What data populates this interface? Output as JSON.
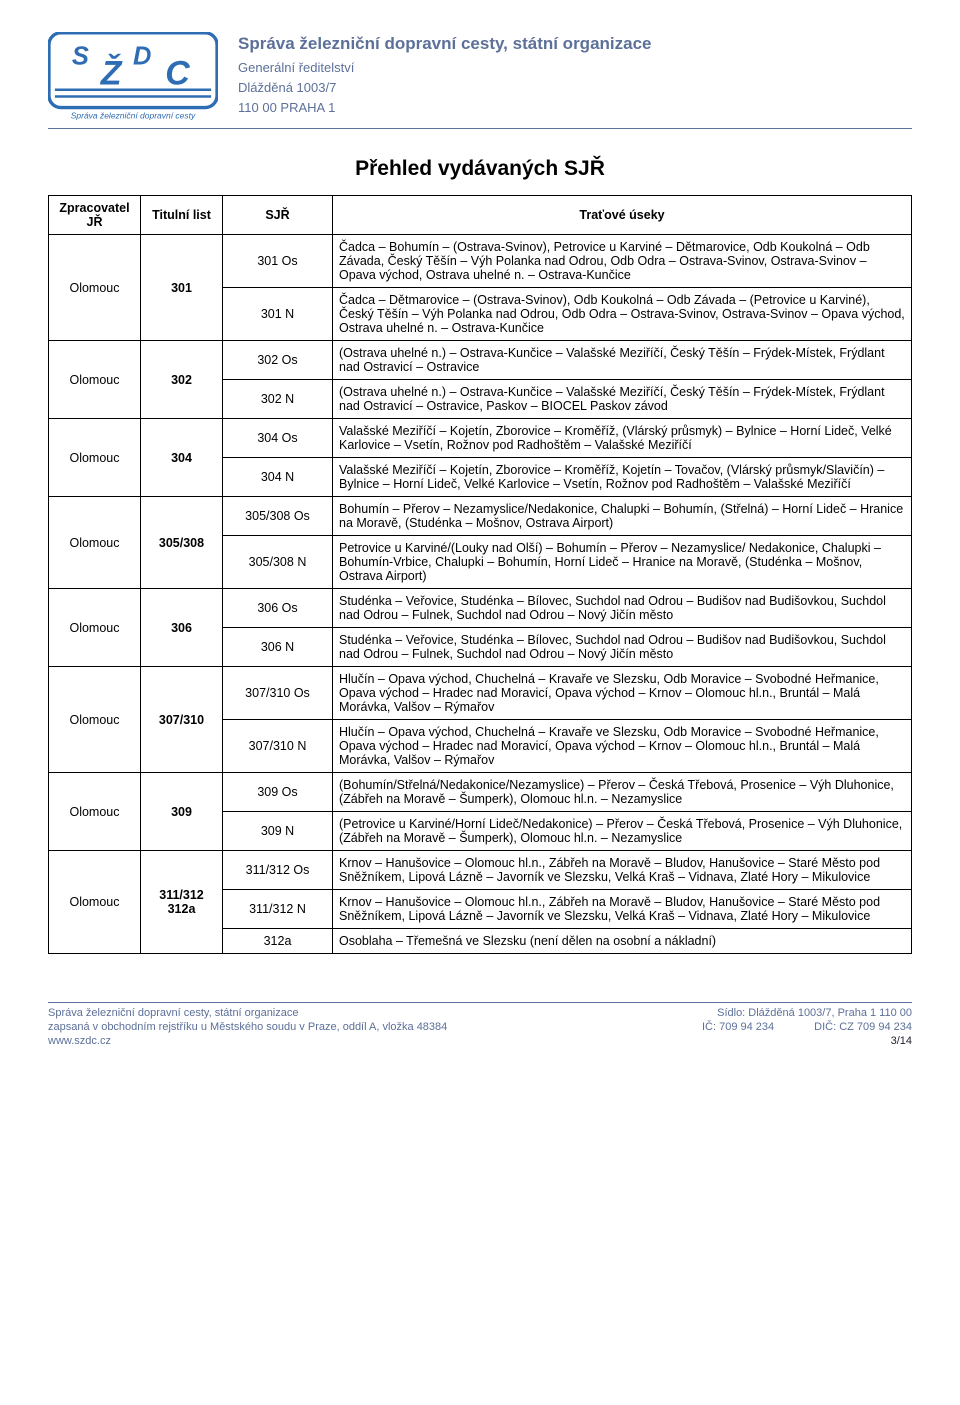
{
  "colors": {
    "accent": "#5d7099",
    "text": "#000000",
    "background": "#ffffff"
  },
  "header": {
    "org_name": "Správa železniční dopravní cesty, státní organizace",
    "line1": "Generální ředitelství",
    "line2": "Dlážděná 1003/7",
    "line3": "110 00  PRAHA 1",
    "logo_tag": "Správa železniční dopravní cesty"
  },
  "title": "Přehled vydávaných SJŘ",
  "columns": {
    "zprac": "Zpracovatel JŘ",
    "titulni": "Titulní list",
    "sjr": "SJŘ",
    "trat": "Traťové úseky"
  },
  "rows": [
    {
      "zprac": "Olomouc",
      "titulni": "301",
      "sub": [
        {
          "sjr": "301 Os",
          "trat": "Čadca – Bohumín – (Ostrava-Svinov), Petrovice u Karviné – Dětmarovice, Odb Koukolná – Odb Závada, Český Těšín – Výh Polanka nad Odrou, Odb Odra – Ostrava-Svinov, Ostrava-Svinov – Opava východ, Ostrava uhelné n. – Ostrava-Kunčice"
        },
        {
          "sjr": "301 N",
          "trat": "Čadca – Dětmarovice – (Ostrava-Svinov), Odb Koukolná – Odb Závada – (Petrovice u Karviné), Český Těšín – Výh Polanka nad Odrou, Odb Odra – Ostrava-Svinov, Ostrava-Svinov – Opava východ, Ostrava uhelné n. – Ostrava-Kunčice"
        }
      ]
    },
    {
      "zprac": "Olomouc",
      "titulni": "302",
      "sub": [
        {
          "sjr": "302 Os",
          "trat": "(Ostrava uhelné n.) – Ostrava-Kunčice – Valašské Meziříčí, Český Těšín – Frýdek-Místek, Frýdlant nad Ostravicí – Ostravice"
        },
        {
          "sjr": "302 N",
          "trat": "(Ostrava uhelné n.) – Ostrava-Kunčice – Valašské Meziříčí, Český Těšín – Frýdek-Místek, Frýdlant nad Ostravicí – Ostravice, Paskov – BIOCEL Paskov závod"
        }
      ]
    },
    {
      "zprac": "Olomouc",
      "titulni": "304",
      "sub": [
        {
          "sjr": "304 Os",
          "trat": "Valašské Meziříčí – Kojetín, Zborovice – Kroměříž, (Vlárský průsmyk) – Bylnice – Horní Lideč, Velké Karlovice – Vsetín, Rožnov pod Radhoštěm – Valašské Meziříčí"
        },
        {
          "sjr": "304 N",
          "trat": "Valašské Meziříčí – Kojetín, Zborovice – Kroměříž, Kojetín – Tovačov, (Vlárský průsmyk/Slavičín) – Bylnice – Horní Lideč, Velké Karlovice – Vsetín, Rožnov pod Radhoštěm – Valašské Meziříčí"
        }
      ]
    },
    {
      "zprac": "Olomouc",
      "titulni": "305/308",
      "sub": [
        {
          "sjr": "305/308 Os",
          "trat": "Bohumín – Přerov – Nezamyslice/Nedakonice, Chalupki – Bohumín, (Střelná) – Horní Lideč – Hranice na Moravě, (Studénka – Mošnov, Ostrava Airport)"
        },
        {
          "sjr": "305/308 N",
          "trat": "Petrovice u Karviné/(Louky nad Olší) – Bohumín – Přerov – Nezamyslice/ Nedakonice, Chalupki – Bohumín-Vrbice, Chalupki – Bohumín, Horní Lideč – Hranice na Moravě, (Studénka – Mošnov, Ostrava Airport)"
        }
      ]
    },
    {
      "zprac": "Olomouc",
      "titulni": "306",
      "sub": [
        {
          "sjr": "306 Os",
          "trat": "Studénka – Veřovice, Studénka – Bílovec, Suchdol nad Odrou – Budišov nad Budišovkou, Suchdol nad Odrou – Fulnek, Suchdol nad Odrou – Nový Jičín město"
        },
        {
          "sjr": "306 N",
          "trat": "Studénka – Veřovice, Studénka – Bílovec, Suchdol nad Odrou – Budišov nad Budišovkou, Suchdol nad Odrou – Fulnek, Suchdol nad Odrou – Nový Jičín město"
        }
      ]
    },
    {
      "zprac": "Olomouc",
      "titulni": "307/310",
      "sub": [
        {
          "sjr": "307/310 Os",
          "trat": "Hlučín – Opava východ, Chuchelná – Kravaře ve Slezsku,  Odb Moravice – Svobodné Heřmanice, Opava východ – Hradec nad Moravicí, Opava východ – Krnov – Olomouc hl.n., Bruntál – Malá Morávka, Valšov – Rýmařov"
        },
        {
          "sjr": "307/310 N",
          "trat": "Hlučín – Opava východ, Chuchelná – Kravaře ve Slezsku,  Odb Moravice – Svobodné Heřmanice, Opava východ – Hradec nad Moravicí, Opava východ – Krnov – Olomouc hl.n., Bruntál – Malá Morávka, Valšov – Rýmařov"
        }
      ]
    },
    {
      "zprac": "Olomouc",
      "titulni": "309",
      "sub": [
        {
          "sjr": "309 Os",
          "trat": "(Bohumín/Střelná/Nedakonice/Nezamyslice) – Přerov – Česká Třebová, Prosenice – Výh Dluhonice, (Zábřeh na Moravě – Šumperk), Olomouc hl.n. – Nezamyslice"
        },
        {
          "sjr": "309 N",
          "trat": "(Petrovice u Karviné/Horní Lideč/Nedakonice) – Přerov – Česká Třebová, Prosenice – Výh Dluhonice, (Zábřeh na Moravě – Šumperk),  Olomouc hl.n. – Nezamyslice"
        }
      ]
    },
    {
      "zprac": "Olomouc",
      "titulni": "311/312 312a",
      "sub": [
        {
          "sjr": "311/312 Os",
          "trat": "Krnov – Hanušovice – Olomouc hl.n., Zábřeh na Moravě – Bludov, Hanušovice – Staré Město pod Sněžníkem, Lipová Lázně – Javorník ve Slezsku, Velká Kraš – Vidnava, Zlaté Hory – Mikulovice"
        },
        {
          "sjr": "311/312 N",
          "trat": "Krnov – Hanušovice – Olomouc hl.n., Zábřeh na Moravě – Bludov, Hanušovice – Staré Město pod Sněžníkem, Lipová Lázně – Javorník ve Slezsku, Velká Kraš – Vidnava, Zlaté Hory – Mikulovice"
        },
        {
          "sjr": "312a",
          "trat": "Osoblaha – Třemešná ve Slezsku (není dělen na osobní a nákladní)"
        }
      ]
    }
  ],
  "footer": {
    "l1_left": "Správa železniční dopravní cesty, státní organizace",
    "l1_right": "Sídlo: Dlážděná 1003/7, Praha 1  110 00",
    "l2_left": "zapsaná v obchodním rejstříku u Městského soudu v Praze, oddíl A, vložka 48384",
    "l2_r1": "IČ: 709 94 234",
    "l2_r2": "DIČ: CZ 709 94 234",
    "l3_left": "www.szdc.cz",
    "page": "3/14"
  }
}
